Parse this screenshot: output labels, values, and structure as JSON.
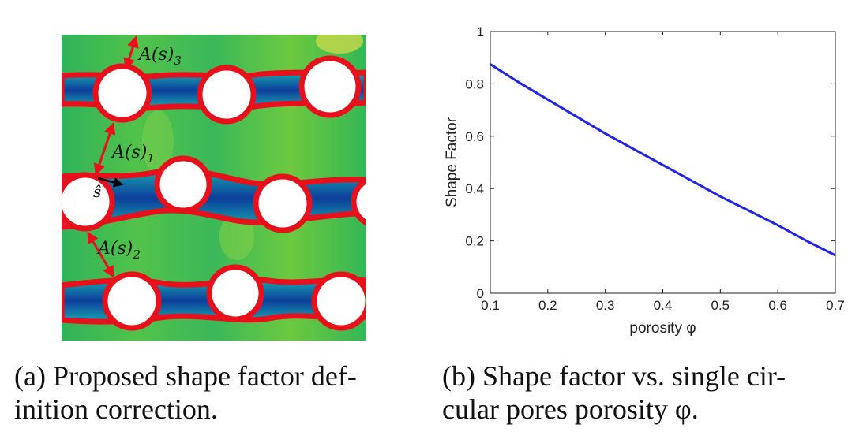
{
  "panel_a": {
    "labels": {
      "a3": "A(s)",
      "a3_sub": "3",
      "a1": "A(s)",
      "a1_sub": "1",
      "a2": "A(s)",
      "a2_sub": "2",
      "s_hat": "ŝ"
    },
    "caption_line1": "(a) Proposed shape factor def-",
    "caption_line2": "inition correction."
  },
  "panel_b": {
    "caption_line1": "(b) Shape factor vs. single cir-",
    "caption_line2": "cular pores porosity φ."
  },
  "colors": {
    "line": "#1f24e6",
    "interface": "#e8101a",
    "arrow": "#e8101a"
  },
  "chart_data": {
    "type": "line",
    "xlabel": "porosity φ",
    "ylabel": "Shape Factor",
    "xlim": [
      0.1,
      0.7
    ],
    "ylim": [
      0,
      1
    ],
    "xticks": [
      0.1,
      0.2,
      0.3,
      0.4,
      0.5,
      0.6,
      0.7
    ],
    "yticks": [
      0,
      0.2,
      0.4,
      0.6,
      0.8,
      1
    ],
    "x": [
      0.1,
      0.15,
      0.2,
      0.25,
      0.3,
      0.35,
      0.4,
      0.45,
      0.5,
      0.55,
      0.6,
      0.65,
      0.7
    ],
    "y": [
      0.875,
      0.805,
      0.74,
      0.675,
      0.61,
      0.55,
      0.49,
      0.43,
      0.37,
      0.315,
      0.26,
      0.2,
      0.145
    ],
    "grid": false
  }
}
